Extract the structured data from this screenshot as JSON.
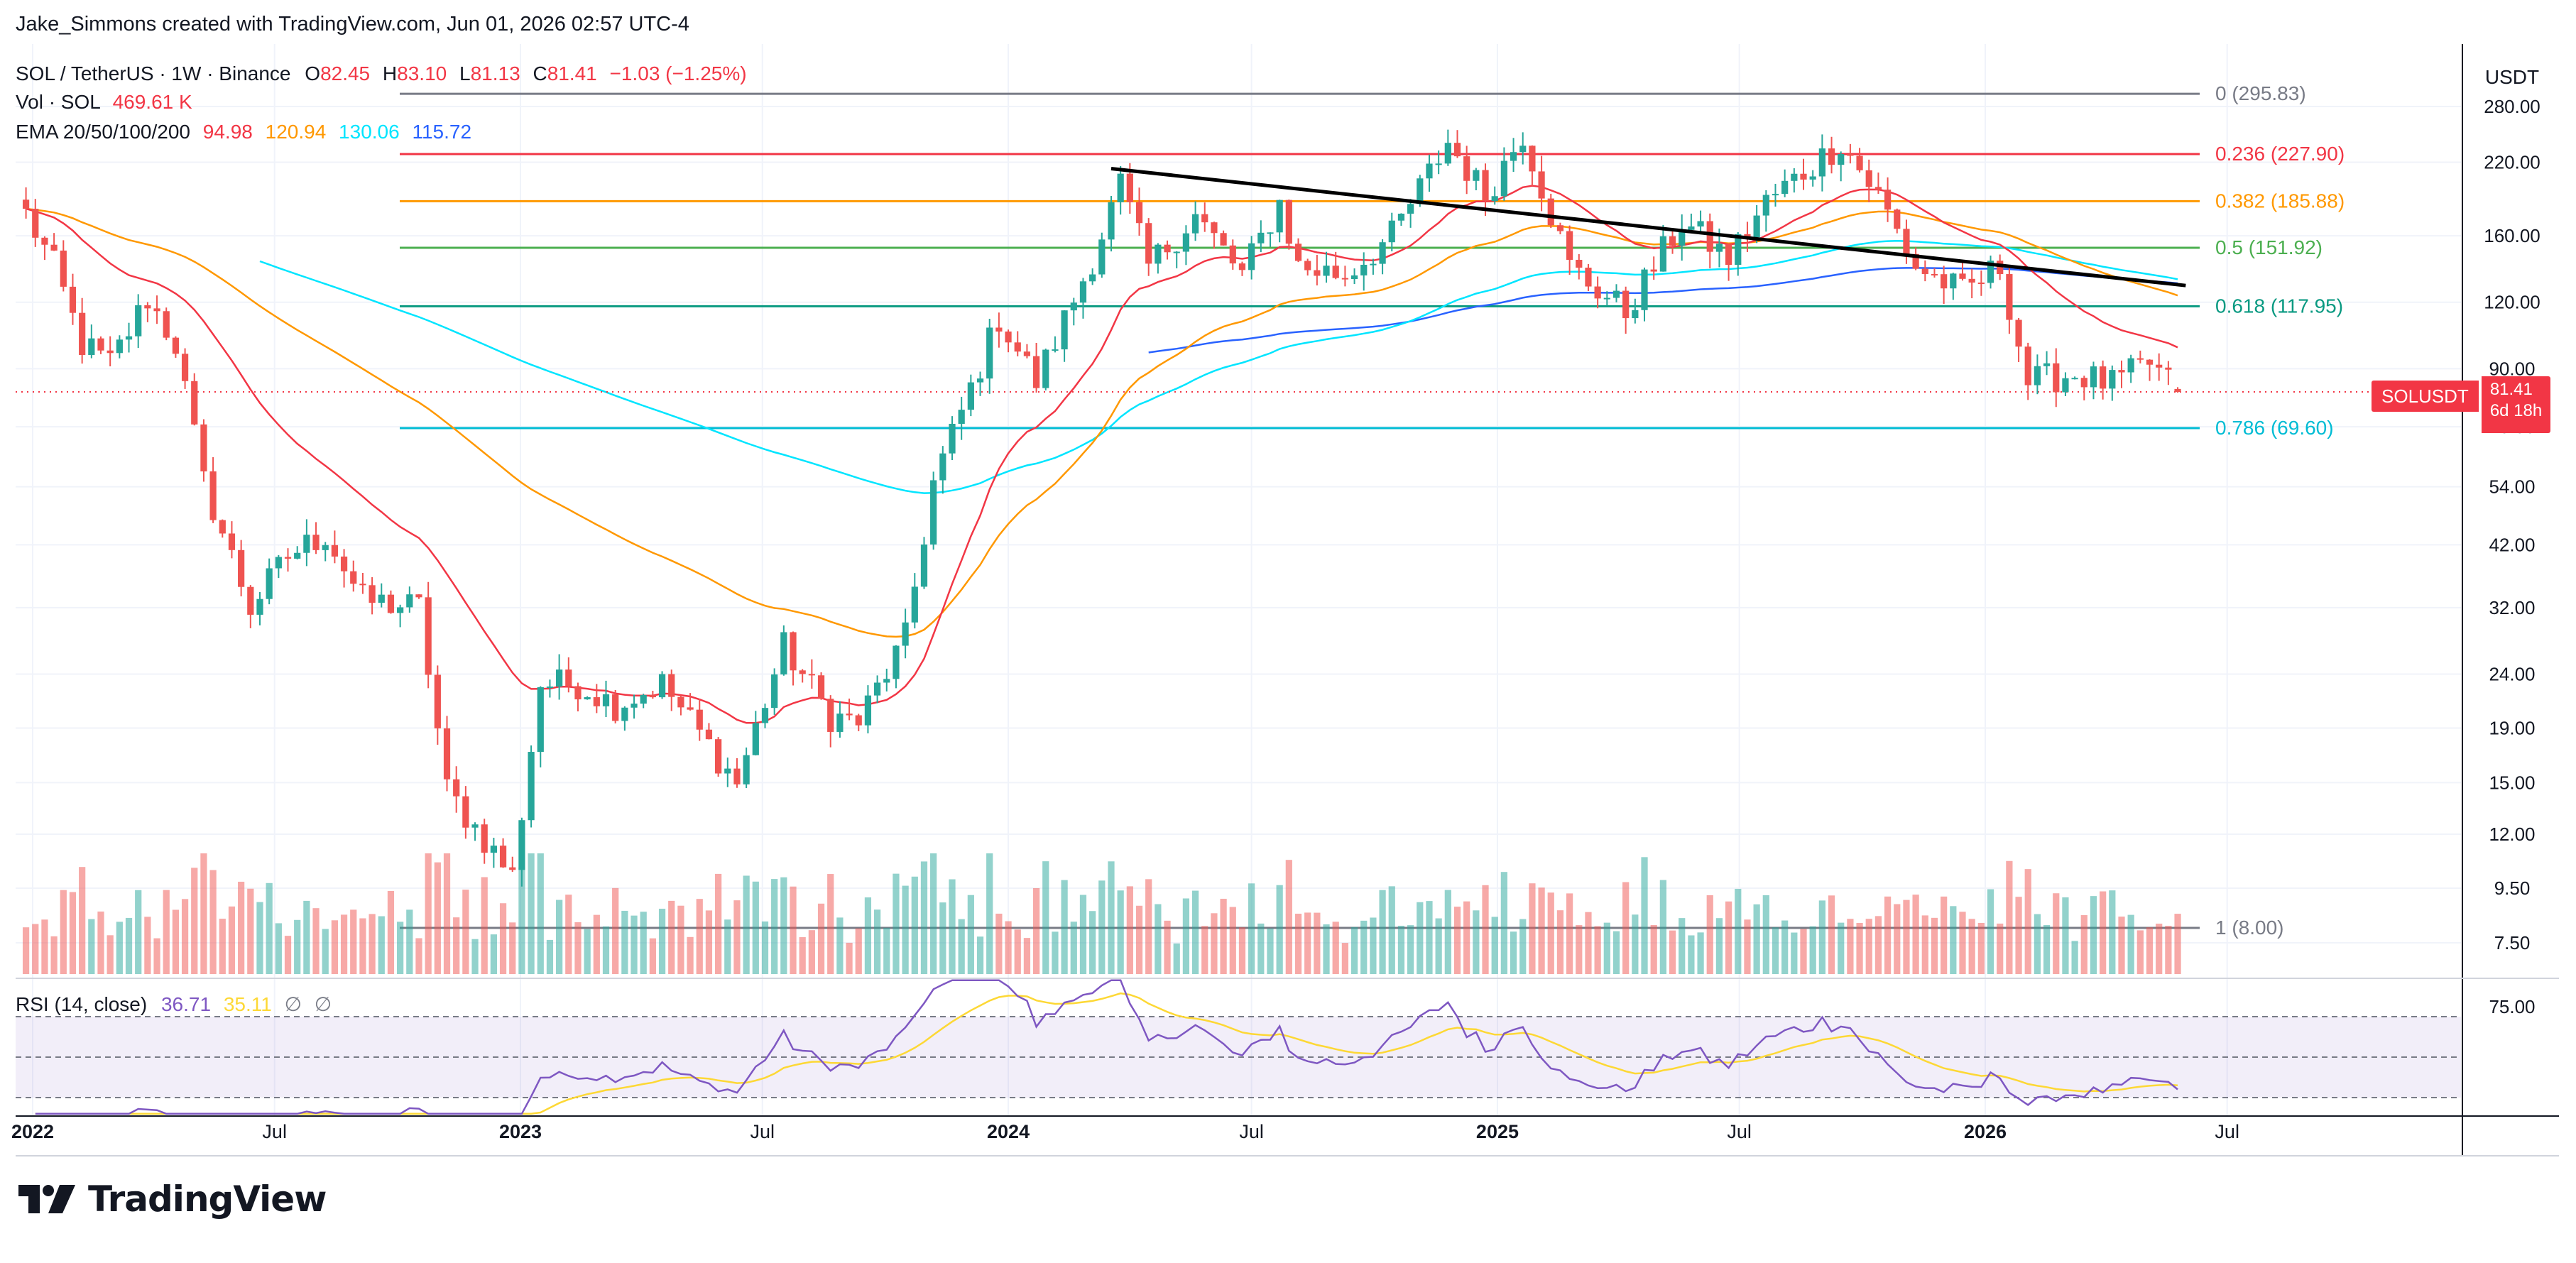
{
  "credit": "Jake_Simmons created with TradingView.com, Jun 01, 2026 02:57 UTC-4",
  "header": {
    "symbol": "SOL / TetherUS · 1W · Binance",
    "o_label": "O",
    "o_value": "82.45",
    "h_label": "H",
    "h_value": "83.10",
    "l_label": "L",
    "l_value": "81.13",
    "c_label": "C",
    "c_value": "81.41",
    "change": "−1.03 (−1.25%)",
    "vol_label": "Vol · SOL",
    "vol_value": "469.61 K",
    "ema_label": "EMA 20/50/100/200",
    "ema_values": [
      "94.98",
      "120.94",
      "130.06",
      "115.72"
    ]
  },
  "axis": {
    "currency": "USDT"
  },
  "price_tag": {
    "symbol": "SOLUSDT",
    "price": "81.41",
    "countdown": "6d 18h"
  },
  "rsi": {
    "label": "RSI (14, close)",
    "value": "36.71",
    "ma_value": "35.11",
    "axis_label": "75.00"
  },
  "logo": {
    "text": "TradingView"
  },
  "colors": {
    "up": "#26a69a",
    "down": "#ef5350",
    "ema20": "#f23645",
    "ema50": "#ff9800",
    "ema100": "#00e5ff",
    "ema200": "#2962ff",
    "rsi": "#7e57c2",
    "rsi_ma": "#fdd835",
    "trendline": "#000000"
  },
  "chart_data": {
    "type": "candlestick",
    "scale": "log",
    "y_ticks": [
      280.0,
      220.0,
      160.0,
      120.0,
      90.0,
      70.0,
      54.0,
      42.0,
      32.0,
      24.0,
      19.0,
      15.0,
      12.0,
      9.5,
      7.5
    ],
    "y_tick_labels": [
      "280.00",
      "220.00",
      "160.00",
      "120.00",
      "90.00",
      "70.00",
      "54.00",
      "42.00",
      "32.00",
      "24.00",
      "19.00",
      "15.00",
      "12.00",
      "9.50",
      "7.50"
    ],
    "x_ticks": [
      {
        "label": "2022",
        "date": "2022-01-01",
        "bold": true
      },
      {
        "label": "Jul",
        "date": "2022-07-01",
        "bold": false
      },
      {
        "label": "2023",
        "date": "2023-01-01",
        "bold": true
      },
      {
        "label": "Jul",
        "date": "2023-07-01",
        "bold": false
      },
      {
        "label": "2024",
        "date": "2024-01-01",
        "bold": true
      },
      {
        "label": "Jul",
        "date": "2024-07-01",
        "bold": false
      },
      {
        "label": "2025",
        "date": "2025-01-01",
        "bold": true
      },
      {
        "label": "Jul",
        "date": "2025-07-01",
        "bold": false
      },
      {
        "label": "2026",
        "date": "2026-01-01",
        "bold": true
      },
      {
        "label": "Jul",
        "date": "2026-07-01",
        "bold": false
      }
    ],
    "fib_levels": [
      {
        "level": "0",
        "price": 295.83,
        "label": "0 (295.83)",
        "color": "#787b86"
      },
      {
        "level": "0.236",
        "price": 227.9,
        "label": "0.236 (227.90)",
        "color": "#f23645"
      },
      {
        "level": "0.382",
        "price": 185.88,
        "label": "0.382 (185.88)",
        "color": "#ff9800"
      },
      {
        "level": "0.5",
        "price": 151.92,
        "label": "0.5 (151.92)",
        "color": "#4caf50"
      },
      {
        "level": "0.618",
        "price": 117.95,
        "label": "0.618 (117.95)",
        "color": "#089981"
      },
      {
        "level": "0.786",
        "price": 69.6,
        "label": "0.786 (69.60)",
        "color": "#00bcd4"
      },
      {
        "level": "1",
        "price": 8.0,
        "label": "1 (8.00)",
        "color": "#787b86"
      }
    ],
    "trendline": [
      {
        "date": "2024-03-18",
        "price": 214
      },
      {
        "date": "2026-05-31",
        "price": 129
      }
    ],
    "anchors": [
      {
        "date": "2021-12-27",
        "price": 176
      },
      {
        "date": "2022-01-17",
        "price": 140
      },
      {
        "date": "2022-02-07",
        "price": 100
      },
      {
        "date": "2022-02-28",
        "price": 92
      },
      {
        "date": "2022-03-28",
        "price": 122
      },
      {
        "date": "2022-04-18",
        "price": 100
      },
      {
        "date": "2022-05-09",
        "price": 55
      },
      {
        "date": "2022-06-13",
        "price": 32
      },
      {
        "date": "2022-07-11",
        "price": 40
      },
      {
        "date": "2022-08-08",
        "price": 44
      },
      {
        "date": "2022-09-05",
        "price": 33
      },
      {
        "date": "2022-10-17",
        "price": 32
      },
      {
        "date": "2022-11-07",
        "price": 14.5
      },
      {
        "date": "2022-12-26",
        "price": 10
      },
      {
        "date": "2023-01-16",
        "price": 23
      },
      {
        "date": "2023-02-13",
        "price": 23
      },
      {
        "date": "2023-03-13",
        "price": 21
      },
      {
        "date": "2023-04-17",
        "price": 23
      },
      {
        "date": "2023-06-12",
        "price": 15
      },
      {
        "date": "2023-07-17",
        "price": 27
      },
      {
        "date": "2023-08-21",
        "price": 20
      },
      {
        "date": "2023-09-11",
        "price": 19.5
      },
      {
        "date": "2023-10-16",
        "price": 28
      },
      {
        "date": "2023-11-06",
        "price": 55
      },
      {
        "date": "2023-12-25",
        "price": 112
      },
      {
        "date": "2024-01-22",
        "price": 85
      },
      {
        "date": "2024-03-04",
        "price": 145
      },
      {
        "date": "2024-03-25",
        "price": 200
      },
      {
        "date": "2024-04-15",
        "price": 140
      },
      {
        "date": "2024-05-20",
        "price": 175
      },
      {
        "date": "2024-06-24",
        "price": 135
      },
      {
        "date": "2024-07-22",
        "price": 185
      },
      {
        "date": "2024-08-05",
        "price": 140
      },
      {
        "date": "2024-09-09",
        "price": 135
      },
      {
        "date": "2024-10-14",
        "price": 160
      },
      {
        "date": "2024-11-25",
        "price": 240
      },
      {
        "date": "2024-12-23",
        "price": 190
      },
      {
        "date": "2025-01-20",
        "price": 250
      },
      {
        "date": "2025-02-24",
        "price": 140
      },
      {
        "date": "2025-04-07",
        "price": 115
      },
      {
        "date": "2025-05-19",
        "price": 170
      },
      {
        "date": "2025-06-23",
        "price": 145
      },
      {
        "date": "2025-07-21",
        "price": 185
      },
      {
        "date": "2025-09-15",
        "price": 240
      },
      {
        "date": "2025-10-13",
        "price": 190
      },
      {
        "date": "2025-11-10",
        "price": 140
      },
      {
        "date": "2025-12-15",
        "price": 125
      },
      {
        "date": "2026-01-12",
        "price": 140
      },
      {
        "date": "2026-02-02",
        "price": 85
      },
      {
        "date": "2026-03-09",
        "price": 88
      },
      {
        "date": "2026-04-06",
        "price": 84
      },
      {
        "date": "2026-05-04",
        "price": 92
      },
      {
        "date": "2026-05-25",
        "price": 81.41
      }
    ]
  }
}
